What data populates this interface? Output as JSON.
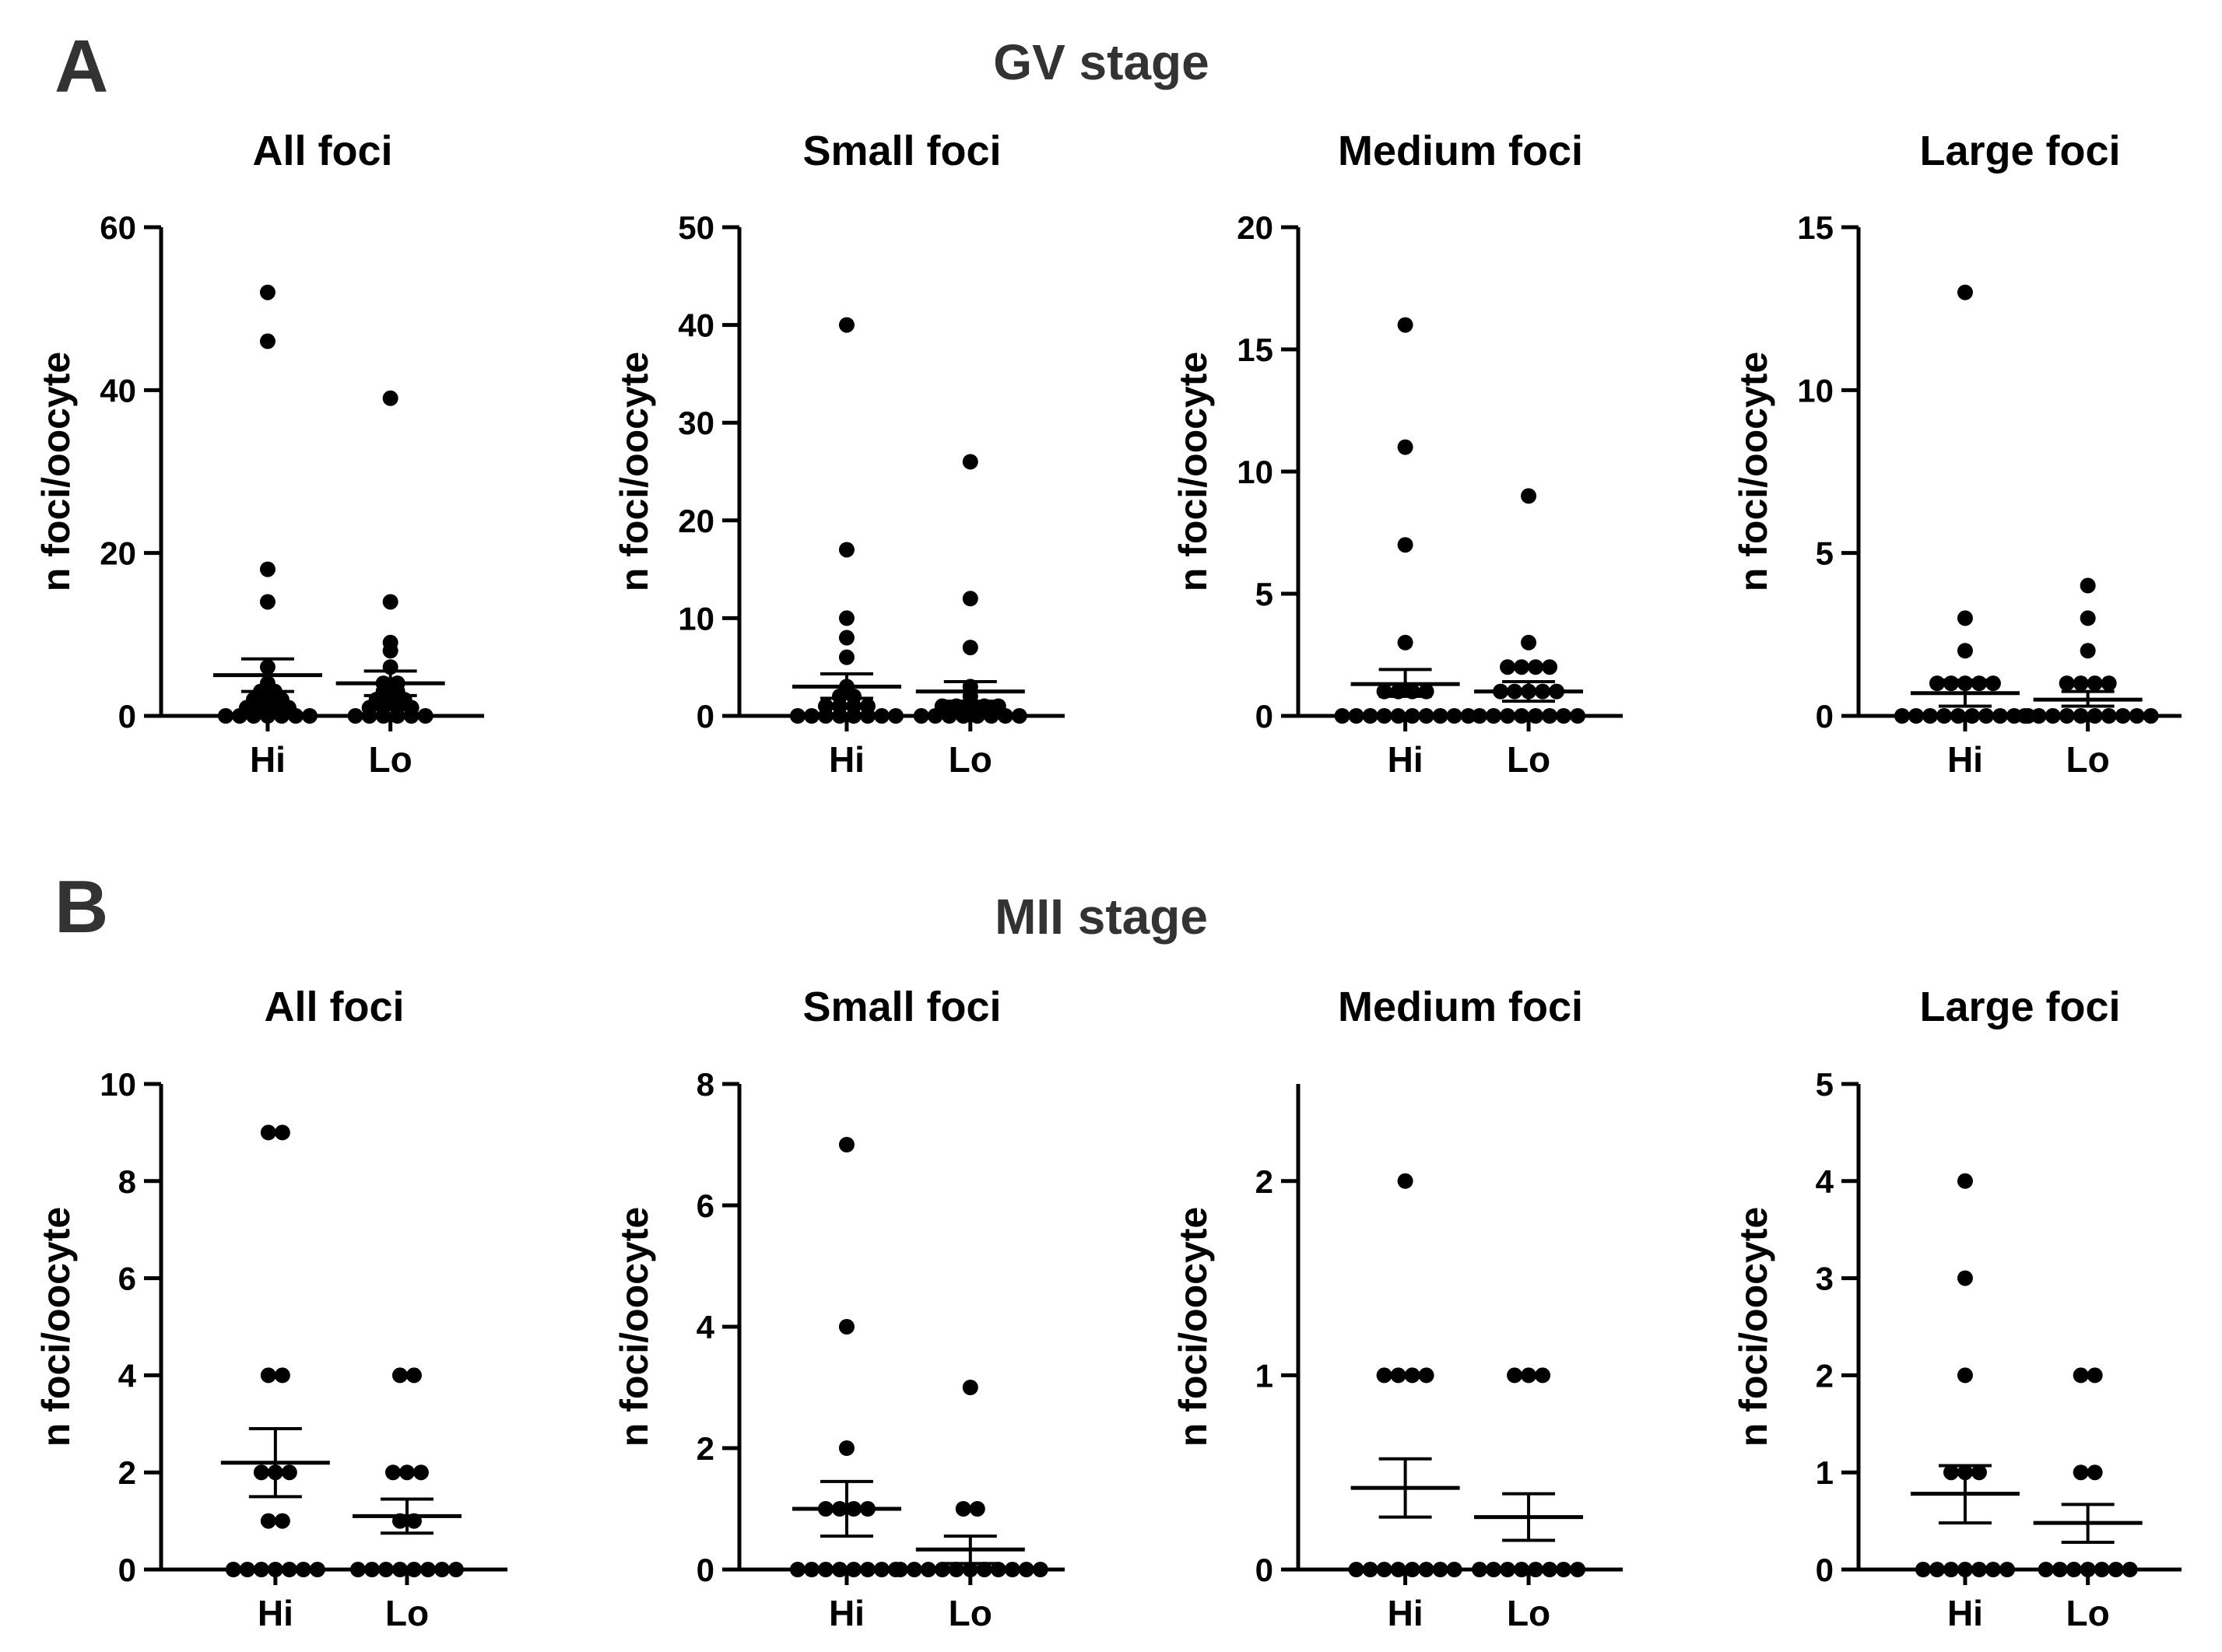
{
  "figure": {
    "panels": [
      {
        "letter": "A",
        "title": "GV stage"
      },
      {
        "letter": "B",
        "title": "MII stage"
      }
    ]
  },
  "chart_data": [
    {
      "type": "scatter",
      "panel": "A",
      "title": "All foci",
      "ylabel": "n foci/oocyte",
      "categories": [
        "Hi",
        "Lo"
      ],
      "ylim": [
        0,
        60
      ],
      "yticks": [
        0,
        20,
        40,
        60
      ],
      "series": [
        {
          "name": "Hi",
          "values": [
            52,
            46,
            18,
            14,
            6,
            4,
            3,
            3,
            2,
            2,
            2,
            1,
            1,
            1,
            1,
            0,
            0,
            0,
            0,
            0,
            0,
            0
          ],
          "mean": 5.0,
          "sem_low": 3.0,
          "sem_high": 7.0
        },
        {
          "name": "Lo",
          "values": [
            39,
            14,
            9,
            8,
            6,
            4,
            4,
            3,
            3,
            2,
            2,
            2,
            1,
            1,
            1,
            1,
            0,
            0,
            0,
            0,
            0,
            0
          ],
          "mean": 4.0,
          "sem_low": 2.5,
          "sem_high": 5.5
        }
      ]
    },
    {
      "type": "scatter",
      "panel": "A",
      "title": "Small foci",
      "ylabel": "n foci/oocyte",
      "categories": [
        "Hi",
        "Lo"
      ],
      "ylim": [
        0,
        50
      ],
      "yticks": [
        0,
        10,
        20,
        30,
        40,
        50
      ],
      "series": [
        {
          "name": "Hi",
          "values": [
            40,
            17,
            10,
            8,
            6,
            3,
            2,
            2,
            1,
            1,
            1,
            1,
            0,
            0,
            0,
            0,
            0,
            0,
            0,
            0
          ],
          "mean": 3.0,
          "sem_low": 1.8,
          "sem_high": 4.3
        },
        {
          "name": "Lo",
          "values": [
            26,
            12,
            7,
            3,
            2,
            1,
            1,
            1,
            1,
            1,
            0,
            0,
            0,
            0,
            0,
            0,
            0,
            0
          ],
          "mean": 2.5,
          "sem_low": 1.5,
          "sem_high": 3.5
        }
      ]
    },
    {
      "type": "scatter",
      "panel": "A",
      "title": "Medium foci",
      "ylabel": "n foci/oocyte",
      "categories": [
        "Hi",
        "Lo"
      ],
      "ylim": [
        0,
        20
      ],
      "yticks": [
        0,
        5,
        10,
        15,
        20
      ],
      "series": [
        {
          "name": "Hi",
          "values": [
            16,
            11,
            7,
            3,
            1,
            1,
            1,
            1,
            0,
            0,
            0,
            0,
            0,
            0,
            0,
            0,
            0,
            0
          ],
          "mean": 1.3,
          "sem_low": 0.8,
          "sem_high": 1.9
        },
        {
          "name": "Lo",
          "values": [
            9,
            3,
            2,
            2,
            2,
            2,
            1,
            1,
            1,
            1,
            1,
            0,
            0,
            0,
            0,
            0,
            0,
            0,
            0
          ],
          "mean": 1.0,
          "sem_low": 0.6,
          "sem_high": 1.4
        }
      ]
    },
    {
      "type": "scatter",
      "panel": "A",
      "title": "Large foci",
      "ylabel": "n foci/oocyte",
      "categories": [
        "Hi",
        "Lo"
      ],
      "ylim": [
        0,
        15
      ],
      "yticks": [
        0,
        5,
        10,
        15
      ],
      "series": [
        {
          "name": "Hi",
          "values": [
            13,
            3,
            2,
            1,
            1,
            1,
            1,
            1,
            0,
            0,
            0,
            0,
            0,
            0,
            0,
            0,
            0,
            0
          ],
          "mean": 0.7,
          "sem_low": 0.3,
          "sem_high": 1.1
        },
        {
          "name": "Lo",
          "values": [
            4,
            3,
            2,
            1,
            1,
            1,
            1,
            0,
            0,
            0,
            0,
            0,
            0,
            0,
            0,
            0,
            0
          ],
          "mean": 0.5,
          "sem_low": 0.3,
          "sem_high": 0.75
        }
      ]
    },
    {
      "type": "scatter",
      "panel": "B",
      "title": "All foci",
      "ylabel": "n foci/oocyte",
      "categories": [
        "Hi",
        "Lo"
      ],
      "ylim": [
        0,
        10
      ],
      "yticks": [
        0,
        2,
        4,
        6,
        8,
        10
      ],
      "series": [
        {
          "name": "Hi",
          "values": [
            9,
            9,
            4,
            4,
            2,
            2,
            2,
            1,
            1,
            0,
            0,
            0,
            0,
            0,
            0,
            0
          ],
          "mean": 2.2,
          "sem_low": 1.5,
          "sem_high": 2.9
        },
        {
          "name": "Lo",
          "values": [
            4,
            4,
            2,
            2,
            2,
            1,
            1,
            0,
            0,
            0,
            0,
            0,
            0,
            0,
            0
          ],
          "mean": 1.1,
          "sem_low": 0.75,
          "sem_high": 1.45
        }
      ]
    },
    {
      "type": "scatter",
      "panel": "B",
      "title": "Small foci",
      "ylabel": "n foci/oocyte",
      "categories": [
        "Hi",
        "Lo"
      ],
      "ylim": [
        0,
        8
      ],
      "yticks": [
        0,
        2,
        4,
        6,
        8
      ],
      "series": [
        {
          "name": "Hi",
          "values": [
            7,
            4,
            2,
            1,
            1,
            1,
            1,
            0,
            0,
            0,
            0,
            0,
            0,
            0,
            0
          ],
          "mean": 1.0,
          "sem_low": 0.55,
          "sem_high": 1.45
        },
        {
          "name": "Lo",
          "values": [
            3,
            1,
            1,
            0,
            0,
            0,
            0,
            0,
            0,
            0,
            0,
            0,
            0,
            0
          ],
          "mean": 0.33,
          "sem_low": 0.1,
          "sem_high": 0.55
        }
      ]
    },
    {
      "type": "scatter",
      "panel": "B",
      "title": "Medium foci",
      "ylabel": "n foci/oocyte",
      "categories": [
        "Hi",
        "Lo"
      ],
      "ylim": [
        0,
        2.5
      ],
      "yticks": [
        0,
        1,
        2
      ],
      "series": [
        {
          "name": "Hi",
          "values": [
            2,
            1,
            1,
            1,
            1,
            0,
            0,
            0,
            0,
            0,
            0,
            0,
            0
          ],
          "mean": 0.42,
          "sem_low": 0.27,
          "sem_high": 0.57
        },
        {
          "name": "Lo",
          "values": [
            1,
            1,
            1,
            0,
            0,
            0,
            0,
            0,
            0,
            0,
            0
          ],
          "mean": 0.27,
          "sem_low": 0.15,
          "sem_high": 0.39
        }
      ]
    },
    {
      "type": "scatter",
      "panel": "B",
      "title": "Large foci",
      "ylabel": "n foci/oocyte",
      "categories": [
        "Hi",
        "Lo"
      ],
      "ylim": [
        0,
        5
      ],
      "yticks": [
        0,
        1,
        2,
        3,
        4,
        5
      ],
      "series": [
        {
          "name": "Hi",
          "values": [
            4,
            3,
            2,
            1,
            1,
            1,
            0,
            0,
            0,
            0,
            0,
            0,
            0
          ],
          "mean": 0.78,
          "sem_low": 0.48,
          "sem_high": 1.07
        },
        {
          "name": "Lo",
          "values": [
            2,
            2,
            1,
            1,
            0,
            0,
            0,
            0,
            0,
            0,
            0
          ],
          "mean": 0.48,
          "sem_low": 0.28,
          "sem_high": 0.67
        }
      ]
    }
  ]
}
